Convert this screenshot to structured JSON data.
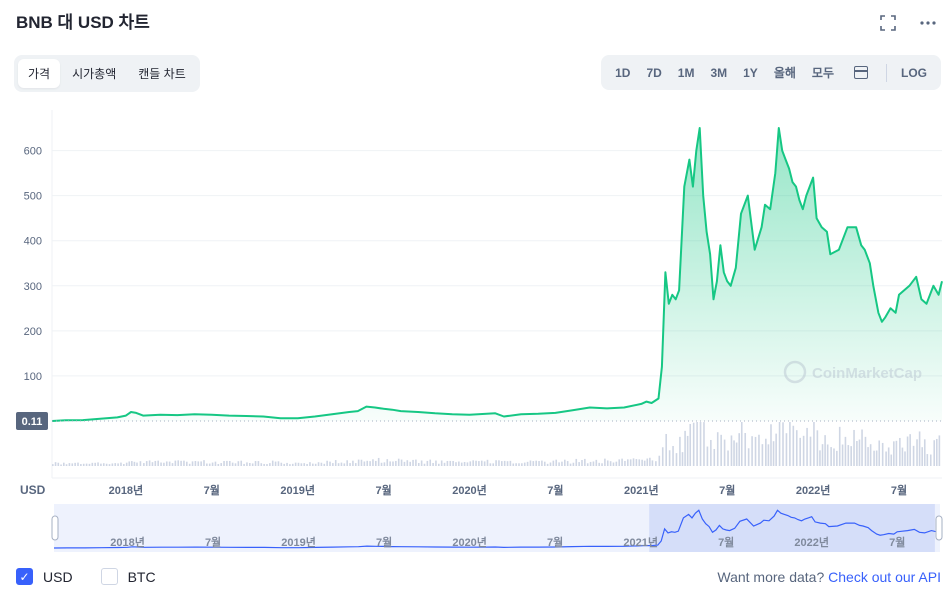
{
  "header": {
    "title": "BNB 대 USD 차트",
    "fullscreen_icon": "fullscreen-icon",
    "more_icon": "more-icon"
  },
  "view_tabs": [
    {
      "label": "가격",
      "active": true
    },
    {
      "label": "시가총액",
      "active": false
    },
    {
      "label": "캔들 차트",
      "active": false
    }
  ],
  "ranges": [
    "1D",
    "7D",
    "1M",
    "3M",
    "1Y",
    "올해",
    "모두"
  ],
  "log_label": "LOG",
  "calendar_icon": "calendar-icon",
  "footer": {
    "usd_label": "USD",
    "usd_checked": true,
    "btc_label": "BTC",
    "btc_checked": false,
    "api_prefix": "Want more data?",
    "api_link": "Check out our API"
  },
  "colors": {
    "line": "#16c784",
    "accent": "#3861fb",
    "volume": "#cfd6e4"
  },
  "chart_data": {
    "type": "area",
    "currency_label": "USD",
    "watermark": "CoinMarketCap",
    "current_low_label": "0.11",
    "y_ticks": [
      100,
      200,
      300,
      400,
      500,
      600
    ],
    "ylim": [
      0,
      690
    ],
    "x_range": [
      2017.57,
      2022.75
    ],
    "x_tick_labels": [
      {
        "x": 2018.0,
        "label": "2018년"
      },
      {
        "x": 2018.5,
        "label": "7월"
      },
      {
        "x": 2019.0,
        "label": "2019년"
      },
      {
        "x": 2019.5,
        "label": "7월"
      },
      {
        "x": 2020.0,
        "label": "2020년"
      },
      {
        "x": 2020.5,
        "label": "7월"
      },
      {
        "x": 2021.0,
        "label": "2021년"
      },
      {
        "x": 2021.5,
        "label": "7월"
      },
      {
        "x": 2022.0,
        "label": "2022년"
      },
      {
        "x": 2022.5,
        "label": "7월"
      }
    ],
    "series": [
      {
        "x": [
          2017.57,
          2017.65,
          2017.75,
          2017.85,
          2017.95,
          2018.0,
          2018.03,
          2018.06,
          2018.1,
          2018.2,
          2018.3,
          2018.4,
          2018.5,
          2018.6,
          2018.7,
          2018.8,
          2018.9,
          2019.0,
          2019.1,
          2019.2,
          2019.3,
          2019.35,
          2019.4,
          2019.45,
          2019.5,
          2019.55,
          2019.6,
          2019.7,
          2019.8,
          2019.9,
          2020.0,
          2020.1,
          2020.15,
          2020.2,
          2020.3,
          2020.4,
          2020.5,
          2020.6,
          2020.7,
          2020.8,
          2020.9,
          2021.0,
          2021.03,
          2021.06,
          2021.1,
          2021.12,
          2021.14,
          2021.16,
          2021.18,
          2021.2,
          2021.22,
          2021.25,
          2021.28,
          2021.3,
          2021.32,
          2021.34,
          2021.36,
          2021.38,
          2021.4,
          2021.42,
          2021.44,
          2021.46,
          2021.48,
          2021.5,
          2021.52,
          2021.55,
          2021.58,
          2021.62,
          2021.66,
          2021.7,
          2021.72,
          2021.75,
          2021.78,
          2021.8,
          2021.82,
          2021.84,
          2021.86,
          2021.88,
          2021.9,
          2021.92,
          2021.94,
          2021.96,
          2021.98,
          2022.0,
          2022.02,
          2022.05,
          2022.08,
          2022.1,
          2022.15,
          2022.2,
          2022.25,
          2022.28,
          2022.3,
          2022.33,
          2022.35,
          2022.38,
          2022.4,
          2022.42,
          2022.45,
          2022.48,
          2022.5,
          2022.53,
          2022.56,
          2022.6,
          2022.63,
          2022.66,
          2022.7,
          2022.73,
          2022.75
        ],
        "values": [
          0.11,
          1.5,
          2,
          5,
          8,
          12,
          20,
          18,
          12,
          14,
          13,
          15,
          14,
          12,
          11,
          10,
          6,
          6,
          10,
          15,
          20,
          22,
          32,
          30,
          27,
          25,
          22,
          20,
          17,
          15,
          14,
          16,
          17,
          10,
          15,
          16,
          18,
          24,
          30,
          28,
          30,
          38,
          43,
          40,
          50,
          120,
          330,
          260,
          280,
          270,
          290,
          520,
          580,
          520,
          600,
          650,
          500,
          420,
          370,
          270,
          310,
          390,
          330,
          310,
          300,
          340,
          460,
          500,
          380,
          430,
          480,
          470,
          550,
          650,
          600,
          580,
          560,
          530,
          520,
          490,
          470,
          500,
          520,
          540,
          450,
          430,
          420,
          370,
          380,
          430,
          430,
          390,
          380,
          350,
          300,
          240,
          220,
          230,
          250,
          240,
          280,
          290,
          300,
          320,
          270,
          260,
          300,
          280,
          310
        ]
      }
    ],
    "brush_labels": [
      {
        "x": 2018.0,
        "label": "2018년"
      },
      {
        "x": 2018.5,
        "label": "7월"
      },
      {
        "x": 2019.0,
        "label": "2019년"
      },
      {
        "x": 2019.5,
        "label": "7월"
      },
      {
        "x": 2020.0,
        "label": "2020년"
      },
      {
        "x": 2020.5,
        "label": "7월"
      },
      {
        "x": 2021.0,
        "label": "2021년"
      },
      {
        "x": 2021.5,
        "label": "7월"
      },
      {
        "x": 2022.0,
        "label": "2022년"
      },
      {
        "x": 2022.5,
        "label": "7월"
      }
    ]
  }
}
